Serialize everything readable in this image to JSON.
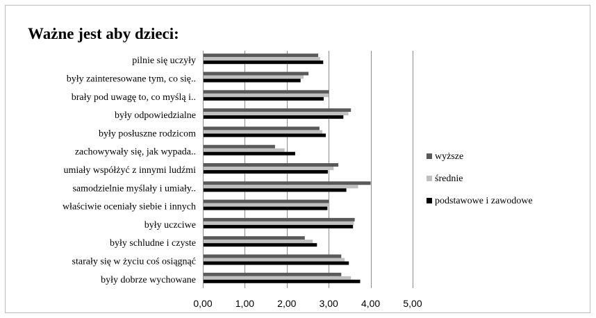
{
  "chart_data": {
    "type": "bar",
    "orientation": "horizontal",
    "title": "Ważne jest aby dzieci:",
    "categories": [
      "pilnie się uczyły",
      "były zainteresowane tym, co się..",
      "brały pod uwagę to, co myślą i..",
      "były odpowiedzialne",
      "były posłuszne rodzicom",
      "zachowywały się, jak wypada..",
      "umiały współżyć z innymi ludźmi",
      "samodzielnie myślały i umiały..",
      "właściwie oceniały siebie i innych",
      "były uczciwe",
      "były schludne i czyste",
      "starały się w życiu coś osiągnąć",
      "były dobrze wychowane"
    ],
    "series": [
      {
        "name": "wyższe",
        "color": "#595959",
        "values": [
          2.75,
          2.52,
          3.0,
          3.53,
          2.78,
          1.72,
          3.23,
          4.0,
          3.0,
          3.62,
          2.43,
          3.3,
          3.3
        ]
      },
      {
        "name": "średnie",
        "color": "#c0c0c0",
        "values": [
          2.8,
          2.4,
          3.0,
          3.47,
          2.85,
          1.95,
          3.12,
          3.7,
          3.02,
          3.6,
          2.62,
          3.38,
          3.53
        ]
      },
      {
        "name": "podstawowe i zawodowe",
        "color": "#000000",
        "values": [
          2.87,
          2.33,
          2.88,
          3.35,
          2.93,
          2.2,
          2.98,
          3.42,
          2.97,
          3.58,
          2.72,
          3.48,
          3.75
        ]
      }
    ],
    "xlim": [
      0,
      5
    ],
    "xticks": [
      "0,00",
      "1,00",
      "2,00",
      "3,00",
      "4,00",
      "5,00"
    ],
    "grid": true,
    "legend_position": "right"
  }
}
